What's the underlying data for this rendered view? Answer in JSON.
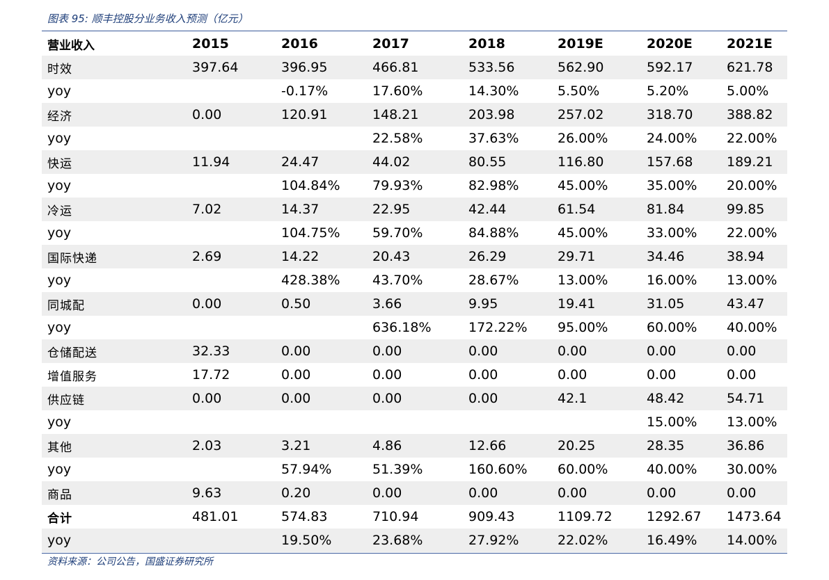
{
  "title": "图表 95:  顺丰控股分业务收入预测（亿元）",
  "source": "资料来源：公司公告，国盛证券研究所",
  "header": [
    "营业收入",
    "2015",
    "2016",
    "2017",
    "2018",
    "2019E",
    "2020E",
    "2021E"
  ],
  "rows": [
    [
      "时效",
      "397.64",
      "396.95",
      "466.81",
      "533.56",
      "562.90",
      "592.17",
      "621.78"
    ],
    [
      "yoy",
      "",
      "-0.17%",
      "17.60%",
      "14.30%",
      "5.50%",
      "5.20%",
      "5.00%"
    ],
    [
      "经济",
      "0.00",
      "120.91",
      "148.21",
      "203.98",
      "257.02",
      "318.70",
      "388.82"
    ],
    [
      "yoy",
      "",
      "",
      "22.58%",
      "37.63%",
      "26.00%",
      "24.00%",
      "22.00%"
    ],
    [
      "快运",
      "11.94",
      "24.47",
      "44.02",
      "80.55",
      "116.80",
      "157.68",
      "189.21"
    ],
    [
      "yoy",
      "",
      "104.84%",
      "79.93%",
      "82.98%",
      "45.00%",
      "35.00%",
      "20.00%"
    ],
    [
      "冷运",
      "7.02",
      "14.37",
      "22.95",
      "42.44",
      "61.54",
      "81.84",
      "99.85"
    ],
    [
      "yoy",
      "",
      "104.75%",
      "59.70%",
      "84.88%",
      "45.00%",
      "33.00%",
      "22.00%"
    ],
    [
      "国际快递",
      "2.69",
      "14.22",
      "20.43",
      "26.29",
      "29.71",
      "34.46",
      "38.94"
    ],
    [
      "yoy",
      "",
      "428.38%",
      "43.70%",
      "28.67%",
      "13.00%",
      "16.00%",
      "13.00%"
    ],
    [
      "同城配",
      "0.00",
      "0.50",
      "3.66",
      "9.95",
      "19.41",
      "31.05",
      "43.47"
    ],
    [
      "yoy",
      "",
      "",
      "636.18%",
      "172.22%",
      "95.00%",
      "60.00%",
      "40.00%"
    ],
    [
      "仓储配送",
      "32.33",
      "0.00",
      "0.00",
      "0.00",
      "0.00",
      "0.00",
      "0.00"
    ],
    [
      "增值服务",
      "17.72",
      "0.00",
      "0.00",
      "0.00",
      "0.00",
      "0.00",
      "0.00"
    ],
    [
      "供应链",
      "0.00",
      "0.00",
      "0.00",
      "0.00",
      "42.1",
      "48.42",
      "54.71"
    ],
    [
      "yoy",
      "",
      "",
      "",
      "",
      "",
      "15.00%",
      "13.00%"
    ],
    [
      "其他",
      "2.03",
      "3.21",
      "4.86",
      "12.66",
      "20.25",
      "28.35",
      "36.86"
    ],
    [
      "yoy",
      "",
      "57.94%",
      "51.39%",
      "160.60%",
      "60.00%",
      "40.00%",
      "30.00%"
    ],
    [
      "商品",
      "9.63",
      "0.20",
      "0.00",
      "0.00",
      "0.00",
      "0.00",
      "0.00"
    ],
    [
      "合计",
      "481.01",
      "574.83",
      "710.94",
      "909.43",
      "1109.72",
      "1292.67",
      "1473.64"
    ],
    [
      "yoy",
      "",
      "19.50%",
      "23.68%",
      "27.92%",
      "22.02%",
      "16.49%",
      "14.00%"
    ]
  ]
}
